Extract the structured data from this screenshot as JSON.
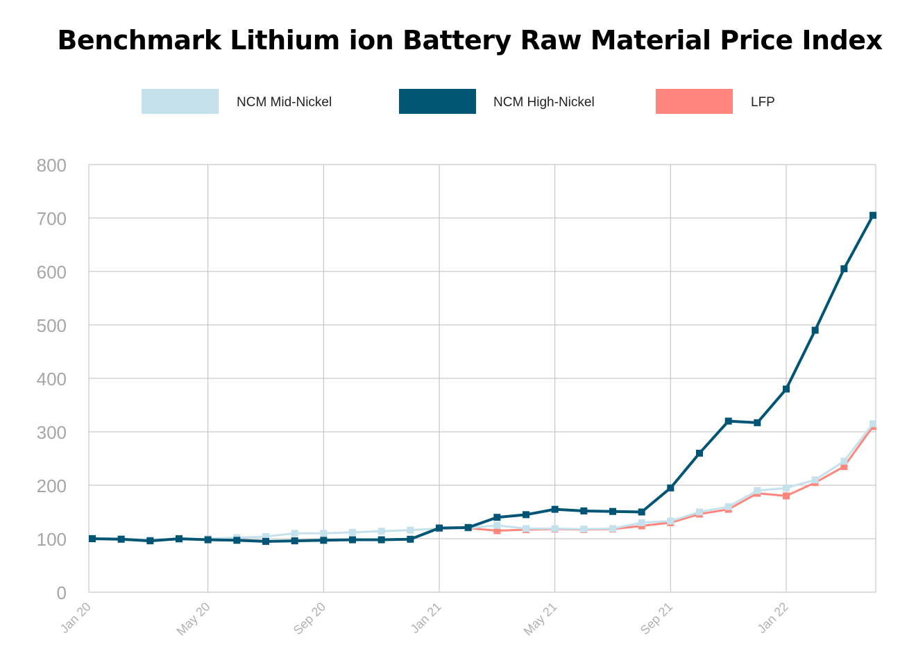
{
  "chart_data": {
    "type": "line",
    "title": "Benchmark Lithium ion Battery Raw Material Price Index",
    "xlabel": "",
    "ylabel": "",
    "ylim": [
      0,
      800
    ],
    "yticks": [
      "0",
      "100",
      "200",
      "300",
      "400",
      "500",
      "600",
      "700",
      "800"
    ],
    "xtick_labels": [
      {
        "index": 0,
        "label": "Jan 20"
      },
      {
        "index": 4,
        "label": "May 20"
      },
      {
        "index": 8,
        "label": "Sep 20"
      },
      {
        "index": 12,
        "label": "Jan 21"
      },
      {
        "index": 16,
        "label": "May 21"
      },
      {
        "index": 20,
        "label": "Sep 21"
      },
      {
        "index": 24,
        "label": "Jan 22"
      }
    ],
    "x": [
      "Jan 20",
      "Feb 20",
      "Mar 20",
      "Apr 20",
      "May 20",
      "Jun 20",
      "Jul 20",
      "Aug 20",
      "Sep 20",
      "Oct 20",
      "Nov 20",
      "Dec 20",
      "Jan 21",
      "Feb 21",
      "Mar 21",
      "Apr 21",
      "May 21",
      "Jun 21",
      "Jul 21",
      "Aug 21",
      "Sep 21",
      "Oct 21",
      "Nov 21",
      "Dec 21",
      "Jan 22",
      "Feb 22",
      "Mar 22",
      "Apr 22"
    ],
    "grid": true,
    "legend": "top",
    "series": [
      {
        "name": "LFP",
        "color": "#FF867C",
        "values": [
          null,
          null,
          null,
          null,
          null,
          null,
          null,
          null,
          null,
          null,
          null,
          null,
          119,
          120,
          115,
          117,
          118,
          117,
          118,
          124,
          130,
          146,
          155,
          185,
          180,
          205,
          235,
          310
        ]
      },
      {
        "name": "NCM Mid-Nickel",
        "color": "#C5E2EC",
        "values": [
          101,
          100,
          98,
          98,
          100,
          102,
          104,
          110,
          110,
          112,
          114,
          116,
          119,
          120,
          125,
          119,
          119,
          118,
          119,
          130,
          133,
          150,
          160,
          190,
          195,
          210,
          245,
          315
        ]
      },
      {
        "name": "NCM High-Nickel",
        "color": "#005575",
        "values": [
          100,
          99,
          96,
          100,
          98,
          97,
          95,
          96,
          97,
          98,
          98,
          99,
          120,
          121,
          140,
          145,
          155,
          152,
          151,
          150,
          195,
          260,
          320,
          317,
          380,
          490,
          605,
          705
        ]
      }
    ],
    "legend_order": [
      "NCM Mid-Nickel",
      "NCM High-Nickel",
      "LFP"
    ]
  }
}
